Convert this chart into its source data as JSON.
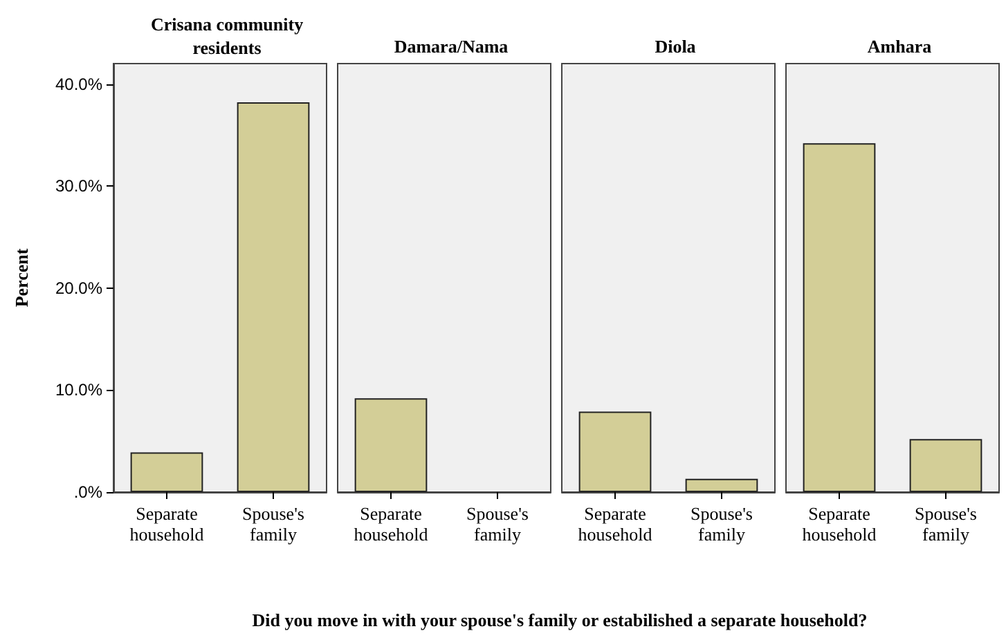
{
  "chart_data": [
    {
      "type": "bar",
      "title": "Crisana community\nresidents",
      "ylabel": "Percent",
      "xlabel": "Did you move in with your spouse's family or estabilished a separate household?",
      "categories": [
        "Separate\nhousehold",
        "Spouse's\nfamily"
      ],
      "values": [
        3.9,
        38.2
      ],
      "color": "#d3ce97",
      "ylim": [
        0,
        42
      ],
      "yticks": [
        {
          "value": 0,
          "label": ".0%"
        },
        {
          "value": 10,
          "label": "10.0%"
        },
        {
          "value": 20,
          "label": "20.0%"
        },
        {
          "value": 30,
          "label": "30.0%"
        },
        {
          "value": 40,
          "label": "40.0%"
        }
      ],
      "grid": false
    },
    {
      "type": "bar",
      "title": "Damara/Nama",
      "categories": [
        "Separate\nhousehold",
        "Spouse's\nfamily"
      ],
      "values": [
        9.2,
        null
      ],
      "color": "#d3ce97",
      "ylim": [
        0,
        42
      ],
      "tick_labels": "x",
      "grid": false
    },
    {
      "type": "bar",
      "title": "Diola",
      "categories": [
        "Separate\nhousehold",
        "Spouse's\nfamily"
      ],
      "values": [
        7.9,
        1.3
      ],
      "color": "#d3ce97",
      "ylim": [
        0,
        42
      ],
      "tick_labels": "x",
      "grid": false
    },
    {
      "type": "bar",
      "title": "Amhara",
      "categories": [
        "Separate\nhousehold",
        "Spouse's\nfamily"
      ],
      "values": [
        34.2,
        5.2
      ],
      "color": "#d3ce97",
      "ylim": [
        0,
        42
      ],
      "tick_labels": "x",
      "grid": false
    }
  ]
}
